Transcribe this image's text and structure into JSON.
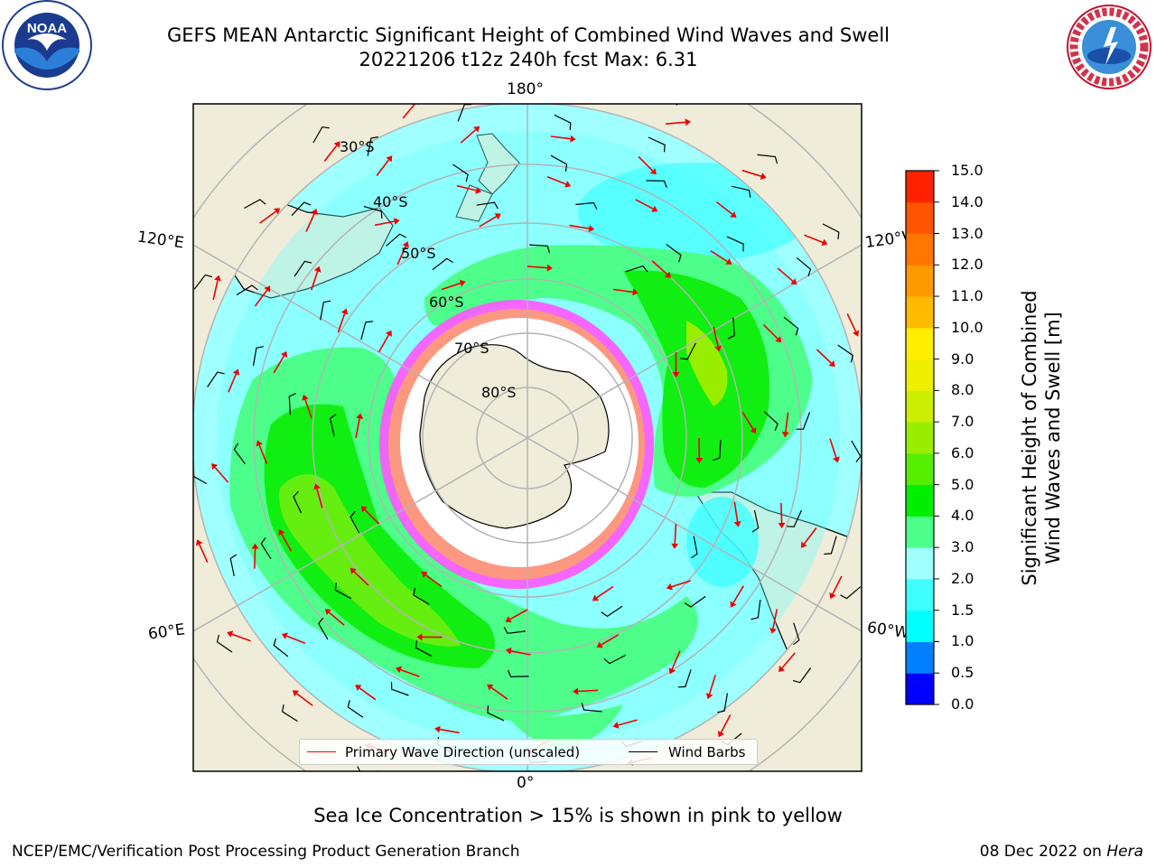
{
  "title_line1": "GEFS MEAN Antarctic Significant Height of Combined Wind Waves and Swell",
  "title_line2": "20221206 t12z 240h fcst   Max: 6.31",
  "logos": {
    "left": "noaa-logo",
    "right": "nws-logo",
    "noaa_text": "NOAA",
    "nws_text": "NATIONAL WEATHER SERVICE"
  },
  "map": {
    "projection": "south-polar-stereographic",
    "lon_labels": {
      "top": "180°",
      "bottom": "0°",
      "upper_left": "120°E",
      "lower_left": "60°E",
      "upper_right": "120°W",
      "lower_right": "60°W"
    },
    "lat_labels": [
      "30°S",
      "40°S",
      "50°S",
      "60°S",
      "70°S",
      "80°S"
    ],
    "colors": {
      "land": "#efedd9",
      "ocean_low": "#a0ffff",
      "ocean_mid": "#66ffff",
      "band_3_4": "#4dff8a",
      "band_4_5": "#11ee11",
      "band_5_6": "#66ee11",
      "sea_ice": "#ff55ff",
      "ice_core": "#ffffff",
      "arrows": "#ee0000",
      "barbs": "#000000"
    }
  },
  "legend": {
    "wave_label": "Primary Wave Direction (unscaled)",
    "barb_label": "Wind Barbs",
    "wave_color": "#ff0000",
    "barb_color": "#000000"
  },
  "colorbar": {
    "label": "Significant Height of Combined Wind Waves and Swell [m]",
    "label_line1": "Significant Height of Combined",
    "label_line2": "Wind Waves and Swell [m]",
    "ticks": [
      "0.0",
      "0.5",
      "1.0",
      "1.5",
      "2.0",
      "3.0",
      "4.0",
      "5.0",
      "6.0",
      "7.0",
      "8.0",
      "9.0",
      "10.0",
      "11.0",
      "12.0",
      "13.0",
      "14.0",
      "15.0"
    ],
    "colors": [
      "#0000ff",
      "#0080ff",
      "#00ffff",
      "#40ffff",
      "#a0ffff",
      "#4dff8a",
      "#00ee00",
      "#55ee00",
      "#99ee00",
      "#ccee00",
      "#eeee00",
      "#ffee00",
      "#ffbb00",
      "#ff9900",
      "#ff7700",
      "#ff5500",
      "#ff2200"
    ]
  },
  "note": "Sea Ice Concentration > 15% is shown in pink to yellow",
  "footer_left": "NCEP/EMC/Verification Post Processing Product Generation Branch",
  "footer_right_text": "08 Dec 2022 on ",
  "footer_right_machine": "Hera"
}
